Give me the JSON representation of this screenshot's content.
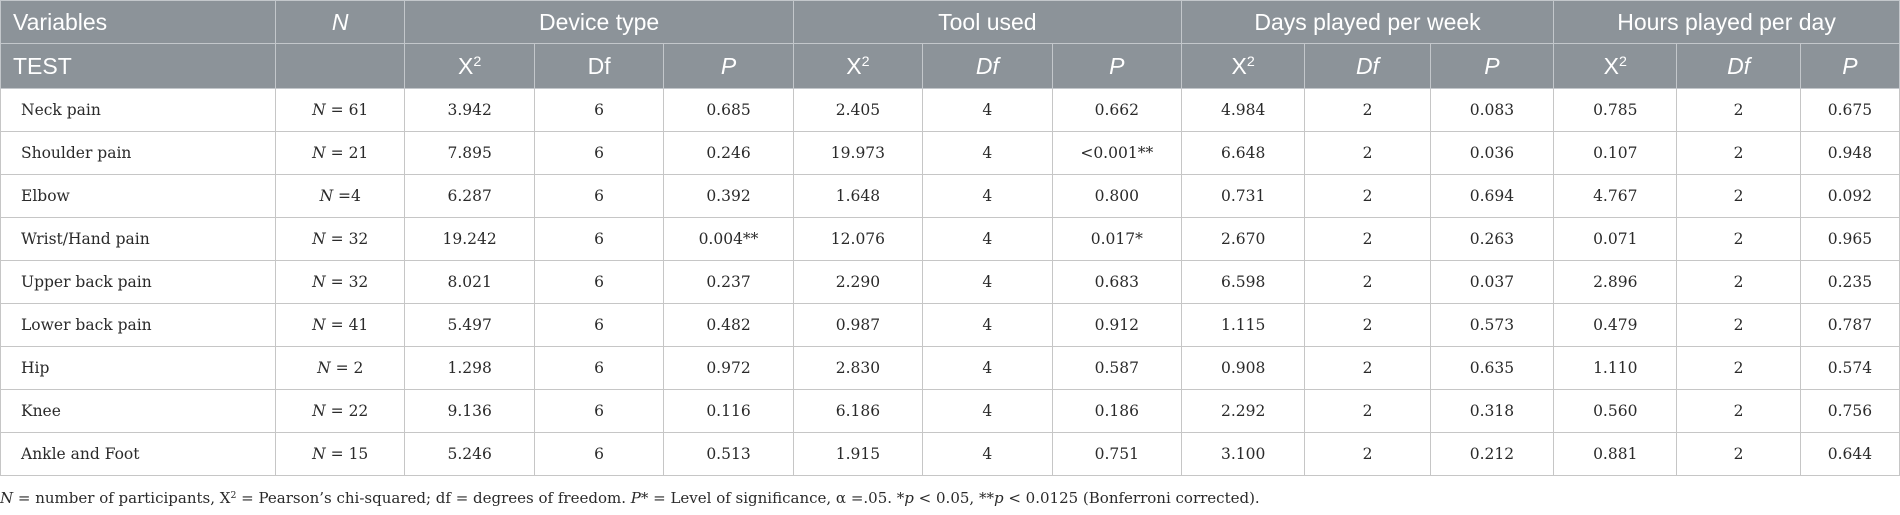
{
  "header": {
    "variables": "Variables",
    "test": "TEST",
    "n": "N",
    "groups": [
      "Device type",
      "Tool used",
      "Days played per week",
      "Hours played per day"
    ],
    "chi": "X",
    "chi_sup": "2",
    "df_plain": "Df",
    "df_italic": "Df",
    "p": "P"
  },
  "rows": [
    {
      "label": "Neck pain",
      "n": "N = 61",
      "cells": [
        "3.942",
        "6",
        "0.685",
        "2.405",
        "4",
        "0.662",
        "4.984",
        "2",
        "0.083",
        "0.785",
        "2",
        "0.675"
      ]
    },
    {
      "label": "Shoulder pain",
      "n": "N = 21",
      "cells": [
        "7.895",
        "6",
        "0.246",
        "19.973",
        "4",
        "<0.001**",
        "6.648",
        "2",
        "0.036",
        "0.107",
        "2",
        "0.948"
      ]
    },
    {
      "label": "Elbow",
      "n": "N =4",
      "cells": [
        "6.287",
        "6",
        "0.392",
        "1.648",
        "4",
        "0.800",
        "0.731",
        "2",
        "0.694",
        "4.767",
        "2",
        "0.092"
      ]
    },
    {
      "label": "Wrist/Hand pain",
      "n": "N = 32",
      "cells": [
        "19.242",
        "6",
        "0.004**",
        "12.076",
        "4",
        "0.017*",
        "2.670",
        "2",
        "0.263",
        "0.071",
        "2",
        "0.965"
      ]
    },
    {
      "label": "Upper back pain",
      "n": "N = 32",
      "cells": [
        "8.021",
        "6",
        "0.237",
        "2.290",
        "4",
        "0.683",
        "6.598",
        "2",
        "0.037",
        "2.896",
        "2",
        "0.235"
      ]
    },
    {
      "label": "Lower back pain",
      "n": "N = 41",
      "cells": [
        "5.497",
        "6",
        "0.482",
        "0.987",
        "4",
        "0.912",
        "1.115",
        "2",
        "0.573",
        "0.479",
        "2",
        "0.787"
      ]
    },
    {
      "label": "Hip",
      "n": "N = 2",
      "cells": [
        "1.298",
        "6",
        "0.972",
        "2.830",
        "4",
        "0.587",
        "0.908",
        "2",
        "0.635",
        "1.110",
        "2",
        "0.574"
      ]
    },
    {
      "label": "Knee",
      "n": "N = 22",
      "cells": [
        "9.136",
        "6",
        "0.116",
        "6.186",
        "4",
        "0.186",
        "2.292",
        "2",
        "0.318",
        "0.560",
        "2",
        "0.756"
      ]
    },
    {
      "label": "Ankle and Foot",
      "n": "N = 15",
      "cells": [
        "5.246",
        "6",
        "0.513",
        "1.915",
        "4",
        "0.751",
        "3.100",
        "2",
        "0.212",
        "0.881",
        "2",
        "0.644"
      ]
    }
  ],
  "footnote": {
    "n_sym": "N",
    "part1": " = number of participants, X",
    "sup": "2",
    "part2": " = Pearson’s chi-squared; df = degrees of freedom. ",
    "p_sym": "P",
    "part3": "* = Level of significance, α =.05. *",
    "p1": "p",
    "part4": " < 0.05, **",
    "p2": "p",
    "part5": " < 0.0125 (Bonferroni corrected)."
  }
}
